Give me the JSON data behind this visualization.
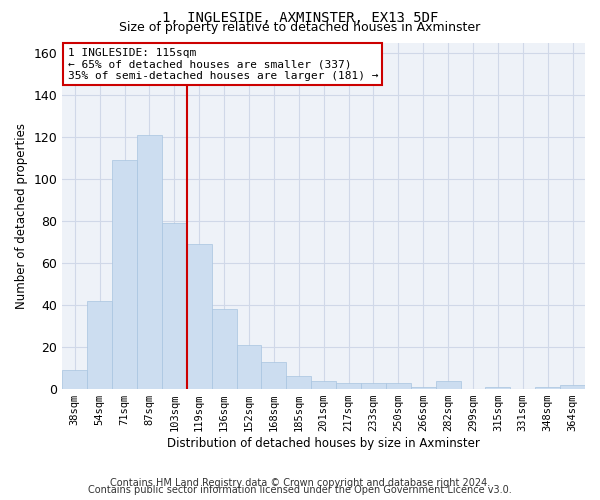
{
  "title1": "1, INGLESIDE, AXMINSTER, EX13 5DF",
  "title2": "Size of property relative to detached houses in Axminster",
  "xlabel": "Distribution of detached houses by size in Axminster",
  "ylabel": "Number of detached properties",
  "bar_color": "#ccddf0",
  "bar_edge_color": "#a8c4e0",
  "categories": [
    "38sqm",
    "54sqm",
    "71sqm",
    "87sqm",
    "103sqm",
    "119sqm",
    "136sqm",
    "152sqm",
    "168sqm",
    "185sqm",
    "201sqm",
    "217sqm",
    "233sqm",
    "250sqm",
    "266sqm",
    "282sqm",
    "299sqm",
    "315sqm",
    "331sqm",
    "348sqm",
    "364sqm"
  ],
  "values": [
    9,
    42,
    109,
    121,
    79,
    69,
    38,
    21,
    13,
    6,
    4,
    3,
    3,
    3,
    1,
    4,
    0,
    1,
    0,
    1,
    2
  ],
  "ylim": [
    0,
    165
  ],
  "yticks": [
    0,
    20,
    40,
    60,
    80,
    100,
    120,
    140,
    160
  ],
  "vline_x_index": 4.5,
  "annotation_title": "1 INGLESIDE: 115sqm",
  "annotation_line1": "← 65% of detached houses are smaller (337)",
  "annotation_line2": "35% of semi-detached houses are larger (181) →",
  "annotation_box_color": "#ffffff",
  "annotation_border_color": "#cc0000",
  "vline_color": "#cc0000",
  "footer1": "Contains HM Land Registry data © Crown copyright and database right 2024.",
  "footer2": "Contains public sector information licensed under the Open Government Licence v3.0.",
  "grid_color": "#d0d8e8",
  "background_color": "#eef2f8"
}
